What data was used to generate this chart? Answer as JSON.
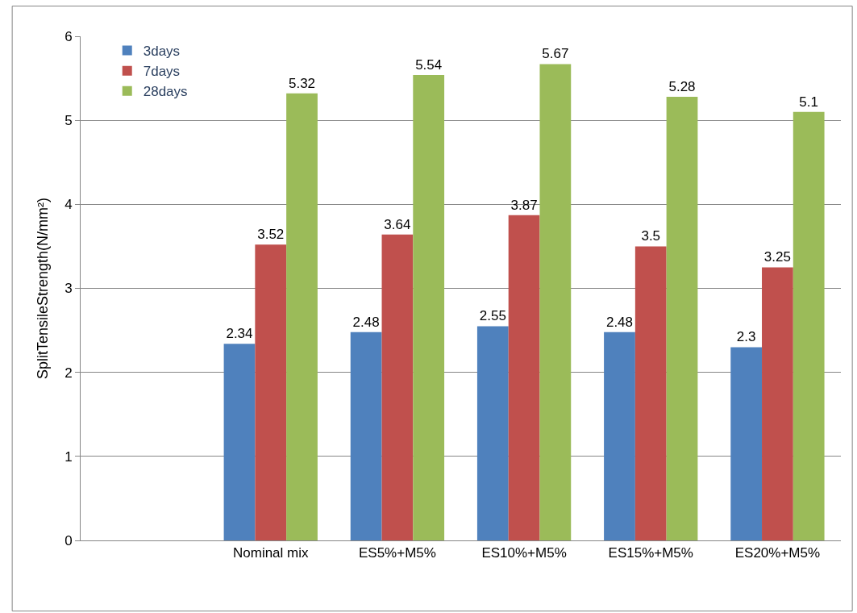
{
  "chart_data": {
    "type": "bar",
    "ylabel": "SplitTensileStrength(N/mm²)",
    "categories": [
      null,
      "Nominal mix",
      "ES5%+M5%",
      "ES10%+M5%",
      "ES15%+M5%",
      "ES20%+M5%"
    ],
    "series": [
      {
        "name": "3days",
        "color": "#4f81bd",
        "values": [
          null,
          2.34,
          2.48,
          2.55,
          2.48,
          2.3
        ]
      },
      {
        "name": "7days",
        "color": "#c0504d",
        "values": [
          null,
          3.52,
          3.64,
          3.87,
          3.5,
          3.25
        ]
      },
      {
        "name": "28days",
        "color": "#9bbb59",
        "values": [
          null,
          5.32,
          5.54,
          5.67,
          5.28,
          5.1
        ]
      }
    ],
    "ylim": [
      0,
      6
    ],
    "yticks": [
      0,
      1,
      2,
      3,
      4,
      5,
      6
    ],
    "grid": "y",
    "legend": "top left",
    "data_labels": true
  }
}
